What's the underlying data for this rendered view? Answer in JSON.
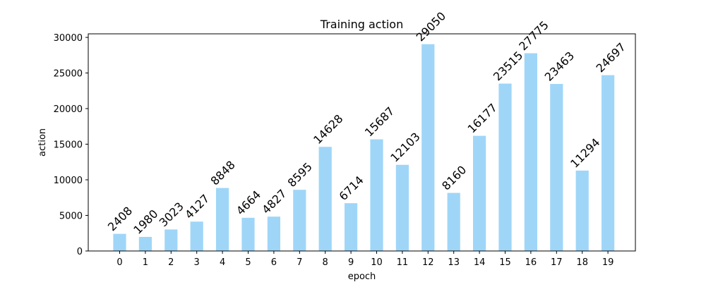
{
  "chart_data": {
    "type": "bar",
    "title": "Training action",
    "xlabel": "epoch",
    "ylabel": "action",
    "categories": [
      "0",
      "1",
      "2",
      "3",
      "4",
      "5",
      "6",
      "7",
      "8",
      "9",
      "10",
      "11",
      "12",
      "13",
      "14",
      "15",
      "16",
      "17",
      "18",
      "19"
    ],
    "values": [
      2408,
      1980,
      3023,
      4127,
      8848,
      4664,
      4827,
      8595,
      14628,
      6714,
      15687,
      12103,
      29050,
      8160,
      16177,
      23515,
      27775,
      23463,
      11294,
      24697
    ],
    "ylim": [
      0,
      30500
    ],
    "yticks": [
      0,
      5000,
      10000,
      15000,
      20000,
      25000,
      30000
    ],
    "grid": false,
    "bar_color": "#9fd6f8",
    "data_labels": true
  }
}
